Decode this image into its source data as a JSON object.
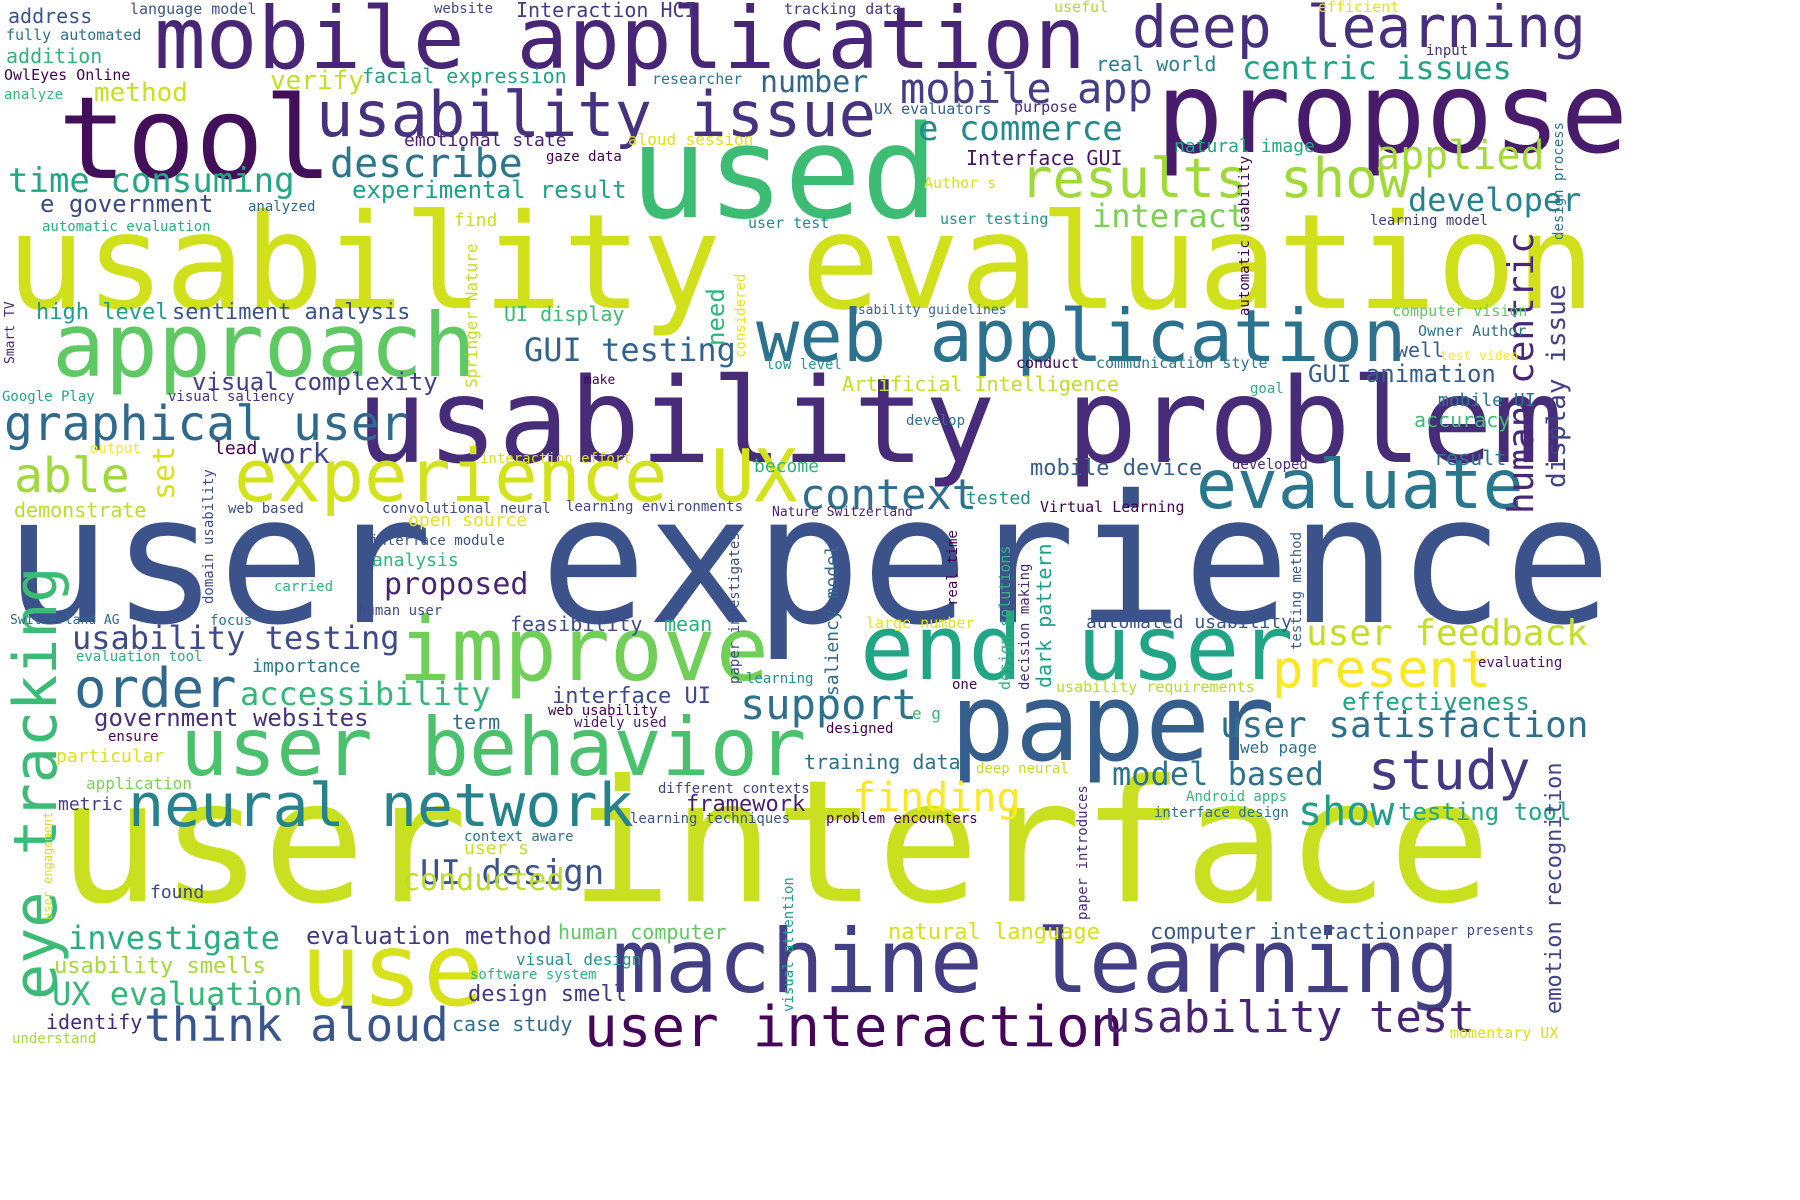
{
  "words": [
    {
      "text": "user experience",
      "color": "#3b528b"
    },
    {
      "text": "user interface",
      "color": "#c8e020"
    },
    {
      "text": "usability evaluation",
      "color": "#d0e11c"
    },
    {
      "text": "usability problem",
      "color": "#472c7a"
    },
    {
      "text": "mobile application",
      "color": "#482576"
    },
    {
      "text": "used",
      "color": "#3dbc74"
    },
    {
      "text": "propose",
      "color": "#481b6d"
    },
    {
      "text": "tool",
      "color": "#440f5a"
    },
    {
      "text": "machine learning",
      "color": "#423f85"
    },
    {
      "text": "paper",
      "color": "#355e8d"
    },
    {
      "text": "web application",
      "color": "#2c728e"
    },
    {
      "text": "approach",
      "color": "#5ec962"
    },
    {
      "text": "improve",
      "color": "#70cf57"
    },
    {
      "text": "end user",
      "color": "#21a685"
    },
    {
      "text": "user behavior",
      "color": "#4ac16d"
    },
    {
      "text": "use",
      "color": "#d8e219"
    },
    {
      "text": "experience UX",
      "color": "#d2e21b"
    },
    {
      "text": "usability issue",
      "color": "#46327e"
    },
    {
      "text": "deep learning",
      "color": "#46307e"
    },
    {
      "text": "neural network",
      "color": "#25838e"
    },
    {
      "text": "user interaction",
      "color": "#450559"
    },
    {
      "text": "evaluate",
      "color": "#2a768e"
    },
    {
      "text": "usability test",
      "color": "#482475"
    },
    {
      "text": "eye tracking",
      "color": "#3bbb75"
    },
    {
      "text": "study",
      "color": "#443a83"
    },
    {
      "text": "present",
      "color": "#fde725"
    },
    {
      "text": "results show",
      "color": "#a0da39"
    },
    {
      "text": "order",
      "color": "#31688e"
    },
    {
      "text": "think aloud",
      "color": "#39568c"
    },
    {
      "text": "mobile app",
      "color": "#433e85"
    },
    {
      "text": "graphical user",
      "color": "#30698e"
    },
    {
      "text": "context",
      "color": "#2e6e8e"
    },
    {
      "text": "support",
      "color": "#2c718e"
    },
    {
      "text": "able",
      "color": "#9fda3a"
    },
    {
      "text": "user feedback",
      "color": "#c2df23"
    },
    {
      "text": "user satisfaction",
      "color": "#2d708e"
    },
    {
      "text": "show",
      "color": "#1f9e89"
    },
    {
      "text": "finding",
      "color": "#fde725"
    },
    {
      "text": "applied",
      "color": "#a5db36"
    },
    {
      "text": "describe",
      "color": "#2a788e"
    },
    {
      "text": "human centric",
      "color": "#482878"
    },
    {
      "text": "model based",
      "color": "#2c738e"
    },
    {
      "text": "investigate",
      "color": "#29af7f"
    },
    {
      "text": "accessibility",
      "color": "#35b779"
    },
    {
      "text": "UX evaluation",
      "color": "#35b779"
    },
    {
      "text": "centric issues",
      "color": "#20a486"
    },
    {
      "text": "developer",
      "color": "#26828e"
    },
    {
      "text": "e commerce",
      "color": "#23898e"
    },
    {
      "text": "time consuming",
      "color": "#22a785"
    },
    {
      "text": "UI design",
      "color": "#3b528b"
    },
    {
      "text": "usability testing",
      "color": "#3e4a89"
    },
    {
      "text": "conducted",
      "color": "#bade28"
    },
    {
      "text": "GUI testing",
      "color": "#33638d"
    },
    {
      "text": "proposed",
      "color": "#482475"
    },
    {
      "text": "testing tool",
      "color": "#22a884"
    },
    {
      "text": "interact",
      "color": "#7ad151"
    },
    {
      "text": "GUI animation",
      "color": "#365c8d"
    },
    {
      "text": "display issue",
      "color": "#424086"
    },
    {
      "text": "emotion recognition",
      "color": "#414487"
    },
    {
      "text": "number",
      "color": "#31688e"
    },
    {
      "text": "work",
      "color": "#3f4889"
    },
    {
      "text": "effectiveness",
      "color": "#1fa187"
    },
    {
      "text": "high level",
      "color": "#1f9e89"
    },
    {
      "text": "sentiment analysis",
      "color": "#3b528b"
    },
    {
      "text": "visual complexity",
      "color": "#424086"
    },
    {
      "text": "evaluation method",
      "color": "#443983"
    },
    {
      "text": "e government",
      "color": "#3e4989"
    },
    {
      "text": "government websites",
      "color": "#46327e"
    },
    {
      "text": "human computer",
      "color": "#5ec962"
    },
    {
      "text": "computer interaction",
      "color": "#38588c"
    },
    {
      "text": "natural language",
      "color": "#d5e21a"
    },
    {
      "text": "experimental result",
      "color": "#1fa088"
    },
    {
      "text": "usability smells",
      "color": "#a2da37"
    },
    {
      "text": "design smell",
      "color": "#453882"
    },
    {
      "text": "case study",
      "color": "#2d708e"
    },
    {
      "text": "framework",
      "color": "#481f70"
    },
    {
      "text": "verify",
      "color": "#c0df25"
    },
    {
      "text": "method",
      "color": "#c8e020"
    },
    {
      "text": "facial expression",
      "color": "#20a386"
    },
    {
      "text": "mobile device",
      "color": "#365d8d"
    },
    {
      "text": "real world",
      "color": "#26818e"
    },
    {
      "text": "interface UI",
      "color": "#3e4a89"
    },
    {
      "text": "set",
      "color": "#d8e219"
    },
    {
      "text": "identify",
      "color": "#482979"
    },
    {
      "text": "demonstrate",
      "color": "#b8de29"
    },
    {
      "text": "term",
      "color": "#2f6c8e"
    },
    {
      "text": "Interface GUI",
      "color": "#481668"
    },
    {
      "text": "need",
      "color": "#2fb47c"
    },
    {
      "text": "natural image",
      "color": "#22a785"
    },
    {
      "text": "accuracy",
      "color": "#3dbc74"
    },
    {
      "text": "address",
      "color": "#3b528b"
    },
    {
      "text": "addition",
      "color": "#2fb47c"
    },
    {
      "text": "Interaction HCI",
      "color": "#433d84"
    },
    {
      "text": "emotional state",
      "color": "#482475"
    },
    {
      "text": "training data",
      "color": "#2d708e"
    },
    {
      "text": "Artificial Intelligence",
      "color": "#c0df25"
    },
    {
      "text": "feasibility",
      "color": "#3e4c8a"
    },
    {
      "text": "mean",
      "color": "#2ab07f"
    },
    {
      "text": "result",
      "color": "#2b758e"
    },
    {
      "text": "well",
      "color": "#355f8d"
    },
    {
      "text": "importance",
      "color": "#2a778e"
    },
    {
      "text": "lead",
      "color": "#440154"
    },
    {
      "text": "become",
      "color": "#2db27d"
    },
    {
      "text": "metric",
      "color": "#433e85"
    },
    {
      "text": "found",
      "color": "#3f4788"
    },
    {
      "text": "mobile UI",
      "color": "#2b748e"
    },
    {
      "text": "automated usability",
      "color": "#3a548c"
    },
    {
      "text": "dark pattern",
      "color": "#1fa088"
    },
    {
      "text": "saliency model",
      "color": "#31688e"
    },
    {
      "text": "open source",
      "color": "#e5e419"
    },
    {
      "text": "analysis",
      "color": "#2fb47c"
    },
    {
      "text": "user s",
      "color": "#c8e020"
    },
    {
      "text": "visual design",
      "color": "#21918c"
    },
    {
      "text": "particular",
      "color": "#dde318"
    },
    {
      "text": "application",
      "color": "#7ad151"
    },
    {
      "text": "tested",
      "color": "#21918c"
    },
    {
      "text": "web page",
      "color": "#2c728e"
    },
    {
      "text": "usability requirements",
      "color": "#b5de2b"
    },
    {
      "text": "language model",
      "color": "#3b528b"
    },
    {
      "text": "fully automated",
      "color": "#2c728e"
    },
    {
      "text": "OwlEyes Online",
      "color": "#440154"
    },
    {
      "text": "analyze",
      "color": "#35b779"
    },
    {
      "text": "website",
      "color": "#404588"
    },
    {
      "text": "tracking data",
      "color": "#443983"
    },
    {
      "text": "useful",
      "color": "#addc30"
    },
    {
      "text": "efficient",
      "color": "#e2e418"
    },
    {
      "text": "input",
      "color": "#46307e"
    },
    {
      "text": "researcher",
      "color": "#2a788e"
    },
    {
      "text": "UX evaluators",
      "color": "#355f8d"
    },
    {
      "text": "purpose",
      "color": "#472d7b"
    },
    {
      "text": "aloud session",
      "color": "#dae319"
    },
    {
      "text": "gaze data",
      "color": "#440154"
    },
    {
      "text": "Author s",
      "color": "#d8e219"
    },
    {
      "text": "analyzed",
      "color": "#31688e"
    },
    {
      "text": "automatic evaluation",
      "color": "#29af7f"
    },
    {
      "text": "find",
      "color": "#c8e020"
    },
    {
      "text": "user test",
      "color": "#23888e"
    },
    {
      "text": "user testing",
      "color": "#1f958b"
    },
    {
      "text": "learning model",
      "color": "#443983"
    },
    {
      "text": "design process",
      "color": "#2c728e"
    },
    {
      "text": "automatic usability",
      "color": "#440154"
    },
    {
      "text": "considered",
      "color": "#e7e419"
    },
    {
      "text": "Springer Nature",
      "color": "#c2df23"
    },
    {
      "text": "usability guidelines",
      "color": "#31688e"
    },
    {
      "text": "UI display",
      "color": "#3bbb75"
    },
    {
      "text": "computer vision",
      "color": "#5ec962"
    },
    {
      "text": "Owner Author",
      "color": "#2c728e"
    },
    {
      "text": "test video",
      "color": "#fde725"
    },
    {
      "text": "Smart TV",
      "color": "#482878"
    },
    {
      "text": "conduct",
      "color": "#440154"
    },
    {
      "text": "communication style",
      "color": "#2a778e"
    },
    {
      "text": "low level",
      "color": "#1f9a8a"
    },
    {
      "text": "make",
      "color": "#440154"
    },
    {
      "text": "goal",
      "color": "#29af7f"
    },
    {
      "text": "develop",
      "color": "#2d708e"
    },
    {
      "text": "Google Play",
      "color": "#20a486"
    },
    {
      "text": "visual saliency",
      "color": "#46307e"
    },
    {
      "text": "output",
      "color": "#fde725"
    },
    {
      "text": "interaction effort",
      "color": "#dae319"
    },
    {
      "text": "developed",
      "color": "#472d7b"
    },
    {
      "text": "web based",
      "color": "#3e4a89"
    },
    {
      "text": "convolutional neural",
      "color": "#3e4c8a"
    },
    {
      "text": "learning environments",
      "color": "#404688"
    },
    {
      "text": "Nature Switzerland",
      "color": "#482475"
    },
    {
      "text": "Virtual Learning",
      "color": "#440154"
    },
    {
      "text": "interface module",
      "color": "#3b528b"
    },
    {
      "text": "domain usability",
      "color": "#3e4c8a"
    },
    {
      "text": "carried",
      "color": "#2fb47c"
    },
    {
      "text": "human user",
      "color": "#3e4c8a"
    },
    {
      "text": "Switzerland AG",
      "color": "#31688e"
    },
    {
      "text": "focus",
      "color": "#2a788e"
    },
    {
      "text": "evaluation tool",
      "color": "#29af7f"
    },
    {
      "text": "paper investigates",
      "color": "#3e4a89"
    },
    {
      "text": "learning",
      "color": "#21918c"
    },
    {
      "text": "real time",
      "color": "#440154"
    },
    {
      "text": "design solutions",
      "color": "#2fb47c"
    },
    {
      "text": "decision making",
      "color": "#482878"
    },
    {
      "text": "large number",
      "color": "#e5e419"
    },
    {
      "text": "testing method",
      "color": "#355f8d"
    },
    {
      "text": "evaluating",
      "color": "#481467"
    },
    {
      "text": "one",
      "color": "#440154"
    },
    {
      "text": "e g",
      "color": "#35b779"
    },
    {
      "text": "designed",
      "color": "#440154"
    },
    {
      "text": "deep neural",
      "color": "#c2df23"
    },
    {
      "text": "web usability",
      "color": "#440154"
    },
    {
      "text": "widely used",
      "color": "#481a6c"
    },
    {
      "text": "ensure",
      "color": "#440154"
    },
    {
      "text": "different contexts",
      "color": "#404588"
    },
    {
      "text": "learning techniques",
      "color": "#39568c"
    },
    {
      "text": "problem encounters",
      "color": "#440154"
    },
    {
      "text": "Android apps",
      "color": "#35b779"
    },
    {
      "text": "interface design",
      "color": "#2c728e"
    },
    {
      "text": "context aware",
      "color": "#2a768e"
    },
    {
      "text": "user engagement",
      "color": "#d5e21a"
    },
    {
      "text": "paper introduces",
      "color": "#472c7a"
    },
    {
      "text": "visual attention",
      "color": "#1fa088"
    },
    {
      "text": "software system",
      "color": "#2fb47c"
    },
    {
      "text": "paper presents",
      "color": "#3e4c8a"
    },
    {
      "text": "understand",
      "color": "#a5db36"
    },
    {
      "text": "momentary UX",
      "color": "#d8e219"
    }
  ]
}
